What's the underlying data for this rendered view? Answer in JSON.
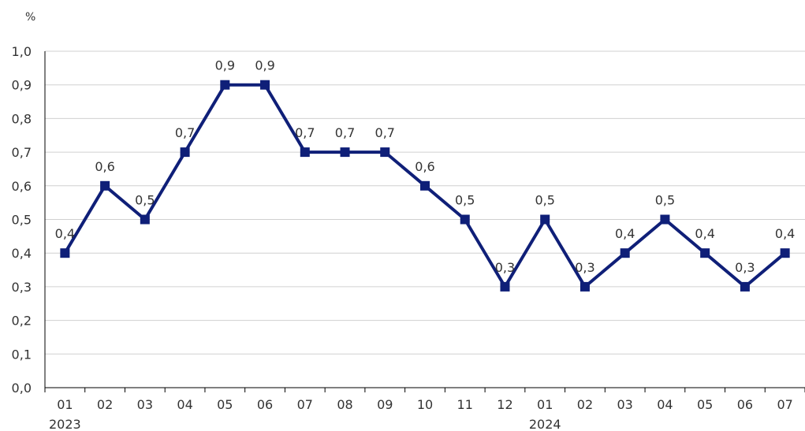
{
  "chart_data": {
    "type": "line",
    "unit_label": "%",
    "categories": [
      "01",
      "02",
      "03",
      "04",
      "05",
      "06",
      "07",
      "08",
      "09",
      "10",
      "11",
      "12",
      "01",
      "02",
      "03",
      "04",
      "05",
      "06",
      "07"
    ],
    "year_labels": [
      {
        "index": 0,
        "label": "2023"
      },
      {
        "index": 12,
        "label": "2024"
      }
    ],
    "series": [
      {
        "values": [
          0.4,
          0.6,
          0.5,
          0.7,
          0.9,
          0.9,
          0.7,
          0.7,
          0.7,
          0.6,
          0.5,
          0.3,
          0.5,
          0.3,
          0.4,
          0.5,
          0.4,
          0.3,
          0.4
        ],
        "data_labels": [
          "0,4",
          "0,6",
          "0,5",
          "0,7",
          "0,9",
          "0,9",
          "0,7",
          "0,7",
          "0,7",
          "0,6",
          "0,5",
          "0,3",
          "0,5",
          "0,3",
          "0,4",
          "0,5",
          "0,4",
          "0,3",
          "0,4"
        ]
      }
    ],
    "y_ticks": [
      0.0,
      0.1,
      0.2,
      0.3,
      0.4,
      0.5,
      0.6,
      0.7,
      0.8,
      0.9,
      1.0
    ],
    "y_tick_labels": [
      "0,0",
      "0,1",
      "0,2",
      "0,3",
      "0,4",
      "0,5",
      "0,6",
      "0,7",
      "0,8",
      "0,9",
      "1,0"
    ],
    "ylim": [
      0,
      1.0
    ],
    "grid": true,
    "colors": {
      "line": "#0f1f78",
      "grid": "#d0d0d0",
      "text": "#333333"
    }
  }
}
